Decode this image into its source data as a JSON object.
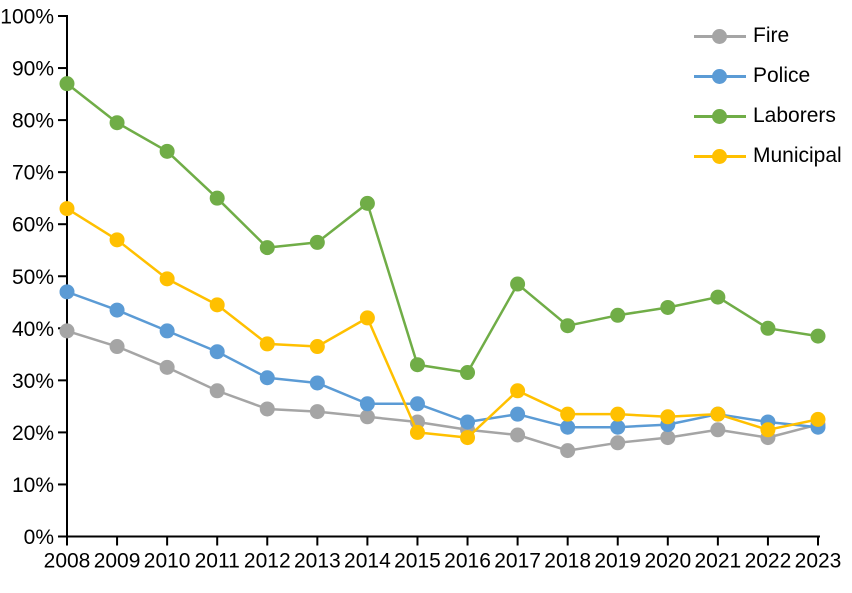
{
  "chart_data": {
    "type": "line",
    "title": "",
    "x_labels": [
      "2008",
      "2009",
      "2010",
      "2011",
      "2012",
      "2013",
      "2014",
      "2015",
      "2016",
      "2017",
      "2018",
      "2019",
      "2020",
      "2021",
      "2022",
      "2023"
    ],
    "y_tick_labels": [
      "0%",
      "10%",
      "20%",
      "30%",
      "40%",
      "50%",
      "60%",
      "70%",
      "80%",
      "90%",
      "100%"
    ],
    "ylim": [
      0,
      100
    ],
    "ytick_step": 10,
    "grid": false,
    "legend_position": "top-right",
    "axis_color": "#000000",
    "background_color": "#FFFFFF",
    "series": [
      {
        "name": "Fire",
        "color": "#A5A5A5",
        "values": [
          39.5,
          36.5,
          32.5,
          28,
          24.5,
          24,
          23,
          22,
          20.5,
          19.5,
          16.5,
          18,
          19,
          20.5,
          19,
          21.5
        ]
      },
      {
        "name": "Police",
        "color": "#5B9BD5",
        "values": [
          47,
          43.5,
          39.5,
          35.5,
          30.5,
          29.5,
          25.5,
          25.5,
          22,
          23.5,
          21,
          21,
          21.5,
          23.5,
          22,
          21
        ]
      },
      {
        "name": "Laborers",
        "color": "#70AD47",
        "values": [
          87,
          79.5,
          74,
          65,
          55.5,
          56.5,
          64,
          33,
          31.5,
          48.5,
          40.5,
          42.5,
          44,
          46,
          40,
          38.5
        ]
      },
      {
        "name": "Municipal",
        "color": "#FFC000",
        "values": [
          63,
          57,
          49.5,
          44.5,
          37,
          36.5,
          42,
          20,
          19,
          28,
          23.5,
          23.5,
          23,
          23.5,
          20.5,
          22.5
        ]
      }
    ],
    "legend": [
      "Fire",
      "Police",
      "Laborers",
      "Municipal"
    ]
  }
}
